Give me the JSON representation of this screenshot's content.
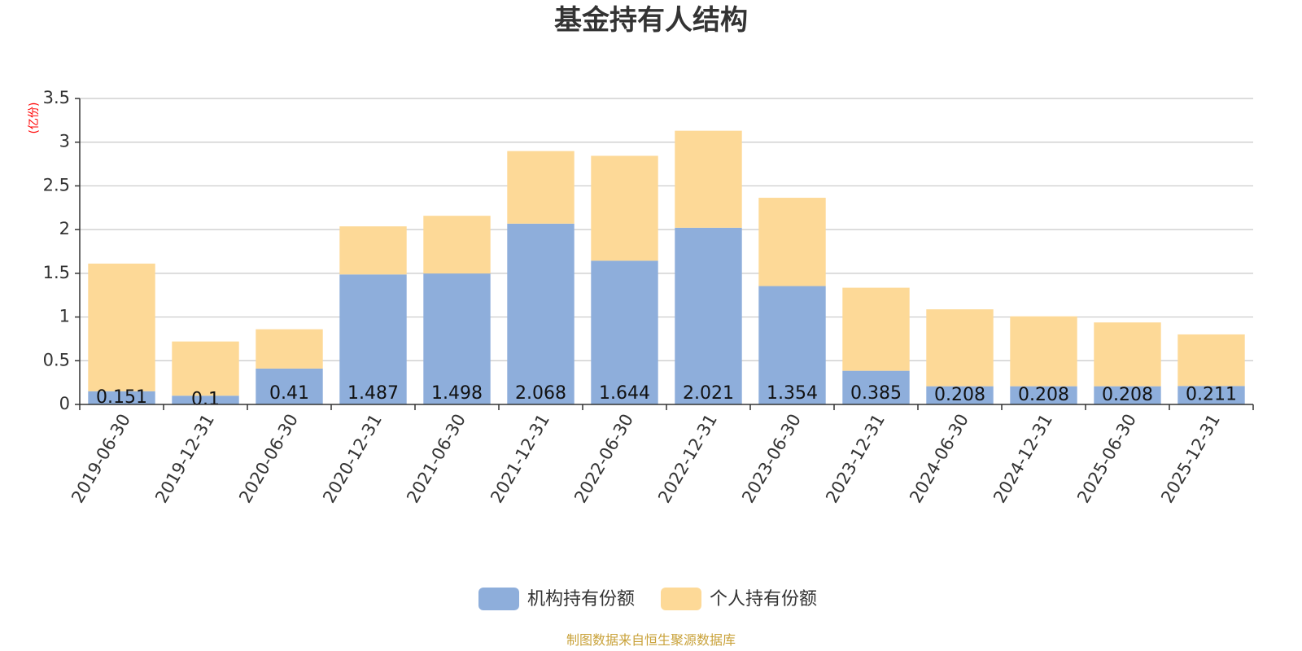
{
  "source_note": "制图数据来自恒生聚源数据库",
  "chart_data": {
    "type": "bar",
    "stacked": true,
    "title": "基金持有人结构",
    "unit_label": "(亿份)",
    "ylim": [
      0,
      3.5
    ],
    "yticks": [
      "0",
      "0.5",
      "1",
      "1.5",
      "2",
      "2.5",
      "3",
      "3.5"
    ],
    "grid": true,
    "legend_position": "bottom-center",
    "categories": [
      "2019-06-30",
      "2019-12-31",
      "2020-06-30",
      "2020-12-31",
      "2021-06-30",
      "2021-12-31",
      "2022-06-30",
      "2022-12-31",
      "2023-06-30",
      "2023-12-31",
      "2024-06-30",
      "2024-12-31",
      "2025-06-30",
      "2025-12-31"
    ],
    "series": [
      {
        "name": "机构持有份额",
        "color": "#8eaedb",
        "values": [
          0.151,
          0.1,
          0.41,
          1.487,
          1.498,
          2.068,
          1.644,
          2.021,
          1.354,
          0.385,
          0.208,
          0.208,
          0.208,
          0.211
        ],
        "labels": [
          "0.151",
          "0.1",
          "0.41",
          "1.487",
          "1.498",
          "2.068",
          "1.644",
          "2.021",
          "1.354",
          "0.385",
          "0.208",
          "0.208",
          "0.208",
          "0.211"
        ]
      },
      {
        "name": "个人持有份额",
        "color": "#fdd997",
        "values": [
          1.46,
          0.62,
          0.45,
          0.55,
          0.66,
          0.83,
          1.2,
          1.11,
          1.01,
          0.95,
          0.88,
          0.8,
          0.73,
          0.59
        ]
      }
    ]
  }
}
